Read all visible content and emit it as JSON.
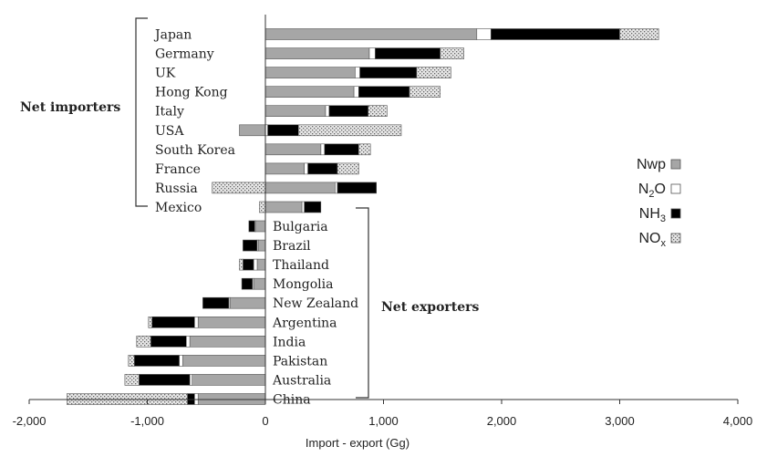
{
  "chart_data": {
    "type": "bar",
    "orientation": "horizontal",
    "stacked": true,
    "xlabel": "Import - export (Gg)",
    "xlim": [
      -2000,
      4000
    ],
    "xticks": [
      -2000,
      -1000,
      0,
      1000,
      2000,
      3000,
      4000
    ],
    "xtick_labels": [
      "-2,000",
      "-1,000",
      "0",
      "1,000",
      "2,000",
      "3,000",
      "4,000"
    ],
    "grid": false,
    "legend_position": "right",
    "groups": [
      {
        "label": "Net importers",
        "from": 0,
        "to": 9
      },
      {
        "label": "Net exporters",
        "from": 10,
        "to": 19
      }
    ],
    "categories": [
      "Japan",
      "Germany",
      "UK",
      "Hong Kong",
      "Italy",
      "USA",
      "South Korea",
      "France",
      "Russia",
      "Mexico",
      "Bulgaria",
      "Brazil",
      "Thailand",
      "Mongolia",
      "New Zealand",
      "Argentina",
      "India",
      "Pakistan",
      "Australia",
      "China"
    ],
    "series": [
      {
        "name": "Nwp",
        "sub": "",
        "color": "#a6a6a6",
        "pattern": "solid",
        "values": [
          1790,
          880,
          760,
          750,
          510,
          -220,
          470,
          330,
          590,
          310,
          -80,
          -60,
          -70,
          -100,
          -300,
          -570,
          -640,
          -700,
          -620,
          -570
        ]
      },
      {
        "name": "N",
        "sub": "2",
        "after": "O",
        "color": "#ffffff",
        "pattern": "hollow",
        "values": [
          120,
          50,
          40,
          40,
          30,
          20,
          30,
          30,
          20,
          20,
          -10,
          -10,
          -30,
          -10,
          -10,
          -30,
          -30,
          -30,
          -20,
          -30
        ]
      },
      {
        "name": "NH",
        "sub": "3",
        "color": "#000000",
        "pattern": "solid",
        "values": [
          1090,
          550,
          480,
          430,
          330,
          260,
          290,
          250,
          330,
          140,
          -50,
          -120,
          -90,
          -90,
          -220,
          -360,
          -300,
          -380,
          -430,
          -60
        ]
      },
      {
        "name": "NO",
        "sub": "x",
        "color": "#d9d9d9",
        "pattern": "dotted",
        "values": [
          330,
          200,
          290,
          260,
          160,
          870,
          100,
          180,
          -450,
          -50,
          0,
          0,
          -30,
          0,
          0,
          -30,
          -120,
          -50,
          -120,
          -1020
        ]
      }
    ]
  }
}
